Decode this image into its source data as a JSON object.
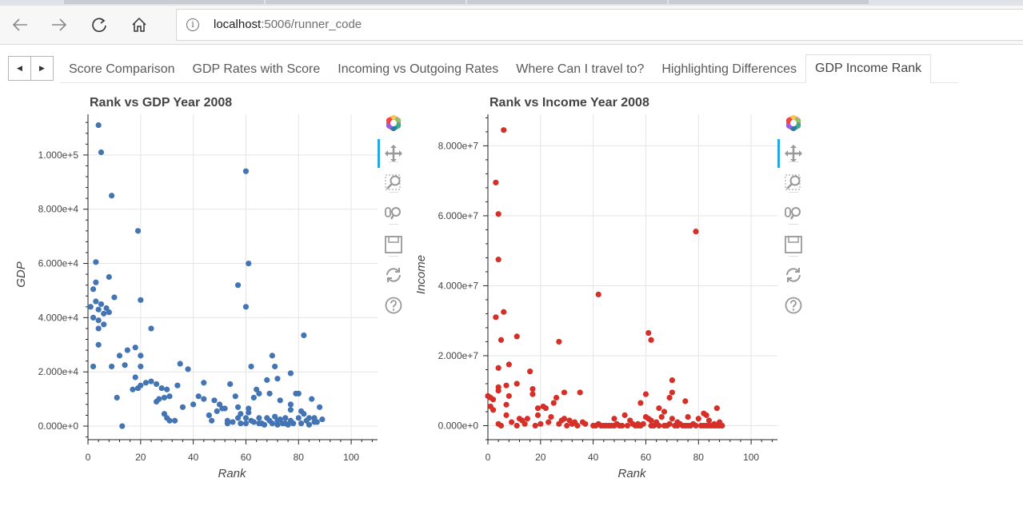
{
  "browser": {
    "url_host": "localhost",
    "url_rest": ":5006/runner_code",
    "info_symbol": "i",
    "nav_icons": [
      "back-arrow-icon",
      "forward-arrow-icon",
      "reload-icon",
      "home-icon"
    ]
  },
  "tabs": {
    "scroll_left": "◀",
    "scroll_right": "▶",
    "items": [
      {
        "label": "Score Comparison"
      },
      {
        "label": "GDP Rates with Score"
      },
      {
        "label": "Incoming vs Outgoing Rates"
      },
      {
        "label": "Where Can I travel to?"
      },
      {
        "label": "Highlighting Differences"
      },
      {
        "label": "GDP Income Rank"
      }
    ],
    "active_index": 5
  },
  "toolbar_icons": [
    "bokeh-logo-icon",
    "pan-icon",
    "box-zoom-icon",
    "wheel-zoom-icon",
    "save-icon",
    "reset-icon",
    "help-icon"
  ],
  "chart_data": [
    {
      "type": "scatter",
      "title": "Rank vs GDP Year 2008",
      "xlabel": "Rank",
      "ylabel": "GDP",
      "xlim": [
        0,
        110
      ],
      "ylim": [
        -5000,
        115000
      ],
      "xticks": [
        0,
        20,
        40,
        60,
        80,
        100
      ],
      "xtick_labels": [
        "0",
        "20",
        "40",
        "60",
        "80",
        "100"
      ],
      "yticks": [
        0,
        20000,
        40000,
        60000,
        80000,
        100000
      ],
      "ytick_labels": [
        "0.000e+0",
        "2.000e+4",
        "4.000e+4",
        "6.000e+4",
        "8.000e+4",
        "1.000e+5"
      ],
      "grid": true,
      "color": "#4374b3",
      "points": [
        [
          4,
          111000
        ],
        [
          5,
          101000
        ],
        [
          9,
          85000
        ],
        [
          19,
          72000
        ],
        [
          60,
          94000
        ],
        [
          61,
          60000
        ],
        [
          3,
          60500
        ],
        [
          8,
          55000
        ],
        [
          57,
          52000
        ],
        [
          3,
          53000
        ],
        [
          2,
          50500
        ],
        [
          10,
          47500
        ],
        [
          20,
          46500
        ],
        [
          1,
          44000
        ],
        [
          60,
          44000
        ],
        [
          3,
          46000
        ],
        [
          4,
          43000
        ],
        [
          5,
          45000
        ],
        [
          7,
          43500
        ],
        [
          6,
          41500
        ],
        [
          8,
          42000
        ],
        [
          2,
          40000
        ],
        [
          4,
          39000
        ],
        [
          6,
          37500
        ],
        [
          24,
          36000
        ],
        [
          82,
          33500
        ],
        [
          4,
          36000
        ],
        [
          4,
          30000
        ],
        [
          15,
          28000
        ],
        [
          18,
          29000
        ],
        [
          70,
          26000
        ],
        [
          12,
          26000
        ],
        [
          20,
          26000
        ],
        [
          9,
          22000
        ],
        [
          2,
          22000
        ],
        [
          20,
          22000
        ],
        [
          14,
          22500
        ],
        [
          35,
          23000
        ],
        [
          38,
          21000
        ],
        [
          71,
          22000
        ],
        [
          77,
          19500
        ],
        [
          18,
          18000
        ],
        [
          68,
          17000
        ],
        [
          72,
          17500
        ],
        [
          22,
          16000
        ],
        [
          24,
          16500
        ],
        [
          26,
          15500
        ],
        [
          20,
          15000
        ],
        [
          64,
          13500
        ],
        [
          19,
          14000
        ],
        [
          17,
          13500
        ],
        [
          44,
          16000
        ],
        [
          54,
          15500
        ],
        [
          56,
          11000
        ],
        [
          28,
          14000
        ],
        [
          30,
          13500
        ],
        [
          34,
          15000
        ],
        [
          40,
          8000
        ],
        [
          42,
          11000
        ],
        [
          44,
          10000
        ],
        [
          48,
          9500
        ],
        [
          50,
          8000
        ],
        [
          52,
          6500
        ],
        [
          29,
          10500
        ],
        [
          31,
          11000
        ],
        [
          26,
          9000
        ],
        [
          27,
          10000
        ],
        [
          11,
          10500
        ],
        [
          36,
          7000
        ],
        [
          46,
          4000
        ],
        [
          47,
          2000
        ],
        [
          53,
          2000
        ],
        [
          55,
          1500
        ],
        [
          57,
          3000
        ],
        [
          58,
          1000
        ],
        [
          60,
          1000
        ],
        [
          61,
          5000
        ],
        [
          62,
          2000
        ],
        [
          63,
          1500
        ],
        [
          65,
          3000
        ],
        [
          66,
          1000
        ],
        [
          67,
          500
        ],
        [
          68,
          3000
        ],
        [
          69,
          2000
        ],
        [
          70,
          1000
        ],
        [
          71,
          3500
        ],
        [
          72,
          500
        ],
        [
          73,
          2500
        ],
        [
          74,
          1000
        ],
        [
          75,
          3000
        ],
        [
          76,
          500
        ],
        [
          77,
          8000
        ],
        [
          78,
          1000
        ],
        [
          79,
          12000
        ],
        [
          80,
          3000
        ],
        [
          81,
          5500
        ],
        [
          82,
          4500
        ],
        [
          83,
          2000
        ],
        [
          84,
          500
        ],
        [
          85,
          10000
        ],
        [
          86,
          3000
        ],
        [
          87,
          1500
        ],
        [
          88,
          7000
        ],
        [
          89,
          2500
        ],
        [
          29,
          4500
        ],
        [
          30,
          3000
        ],
        [
          31,
          2000
        ],
        [
          33,
          2000
        ],
        [
          49,
          5500
        ],
        [
          51,
          6500
        ],
        [
          57,
          7000
        ],
        [
          61,
          6500
        ],
        [
          63,
          10500
        ],
        [
          65,
          12000
        ],
        [
          69,
          12000
        ],
        [
          73,
          9500
        ],
        [
          77,
          6000
        ],
        [
          80,
          12000
        ],
        [
          13,
          0
        ],
        [
          58,
          4500
        ],
        [
          84,
          3000
        ],
        [
          62,
          22000
        ],
        [
          53,
          1000
        ],
        [
          60,
          3000
        ],
        [
          65,
          1000
        ],
        [
          72,
          2000
        ],
        [
          75,
          1000
        ],
        [
          77,
          2000
        ],
        [
          81,
          1000
        ],
        [
          86,
          1500
        ]
      ]
    },
    {
      "type": "scatter",
      "title": "Rank vs Income Year 2008",
      "xlabel": "Rank",
      "ylabel": "Income",
      "xlim": [
        0,
        110
      ],
      "ylim": [
        -4000000,
        89000000
      ],
      "xticks": [
        0,
        20,
        40,
        60,
        80,
        100
      ],
      "xtick_labels": [
        "0",
        "20",
        "40",
        "60",
        "80",
        "100"
      ],
      "yticks": [
        0,
        20000000,
        40000000,
        60000000,
        80000000
      ],
      "ytick_labels": [
        "0.000e+0",
        "2.000e+7",
        "4.000e+7",
        "6.000e+7",
        "8.000e+7"
      ],
      "grid": true,
      "color": "#d52f28",
      "points": [
        [
          6,
          84500000
        ],
        [
          3,
          69500000
        ],
        [
          4,
          60500000
        ],
        [
          79,
          55500000
        ],
        [
          4,
          47500000
        ],
        [
          42,
          37500000
        ],
        [
          6,
          32500000
        ],
        [
          3,
          31000000
        ],
        [
          61,
          26500000
        ],
        [
          11,
          25500000
        ],
        [
          62,
          24500000
        ],
        [
          5,
          24500000
        ],
        [
          27,
          24000000
        ],
        [
          8,
          17500000
        ],
        [
          4,
          16500000
        ],
        [
          16,
          15500000
        ],
        [
          70,
          13000000
        ],
        [
          4,
          11000000
        ],
        [
          7,
          11500000
        ],
        [
          4,
          10000000
        ],
        [
          11,
          12000000
        ],
        [
          17,
          10500000
        ],
        [
          29,
          9500000
        ],
        [
          35,
          9500000
        ],
        [
          70,
          9500000
        ],
        [
          0,
          8500000
        ],
        [
          1,
          8000000
        ],
        [
          2,
          7500000
        ],
        [
          8,
          8500000
        ],
        [
          17,
          9000000
        ],
        [
          26,
          8000000
        ],
        [
          60,
          9000000
        ],
        [
          75,
          7000000
        ],
        [
          25,
          6500000
        ],
        [
          58,
          6500000
        ],
        [
          69,
          8000000
        ],
        [
          7,
          6000000
        ],
        [
          19,
          5000000
        ],
        [
          22,
          5000000
        ],
        [
          65,
          5000000
        ],
        [
          87,
          5000000
        ],
        [
          1,
          5500000
        ],
        [
          2,
          4500000
        ],
        [
          21,
          5500000
        ],
        [
          67,
          4000000
        ],
        [
          82,
          3500000
        ],
        [
          7,
          3000000
        ],
        [
          12,
          2000000
        ],
        [
          19,
          3000000
        ],
        [
          24,
          2500000
        ],
        [
          29,
          2000000
        ],
        [
          31,
          1500000
        ],
        [
          33,
          1000000
        ],
        [
          36,
          1000000
        ],
        [
          48,
          2000000
        ],
        [
          52,
          3000000
        ],
        [
          54,
          1500000
        ],
        [
          60,
          2500000
        ],
        [
          61,
          2000000
        ],
        [
          64,
          1000000
        ],
        [
          66,
          2500000
        ],
        [
          70,
          2000000
        ],
        [
          72,
          1000000
        ],
        [
          76,
          2500000
        ],
        [
          78,
          500000
        ],
        [
          80,
          2000000
        ],
        [
          84,
          1500000
        ],
        [
          86,
          500000
        ],
        [
          88,
          1000000
        ],
        [
          4,
          500000
        ],
        [
          5,
          0
        ],
        [
          9,
          1000000
        ],
        [
          11,
          0
        ],
        [
          14,
          500000
        ],
        [
          18,
          0
        ],
        [
          20,
          500000
        ],
        [
          23,
          1000000
        ],
        [
          27,
          500000
        ],
        [
          30,
          0
        ],
        [
          32,
          500000
        ],
        [
          34,
          0
        ],
        [
          37,
          500000
        ],
        [
          40,
          0
        ],
        [
          41,
          0
        ],
        [
          42,
          500000
        ],
        [
          43,
          0
        ],
        [
          44,
          0
        ],
        [
          45,
          0
        ],
        [
          46,
          0
        ],
        [
          47,
          0
        ],
        [
          48,
          0
        ],
        [
          49,
          500000
        ],
        [
          50,
          0
        ],
        [
          51,
          0
        ],
        [
          53,
          0
        ],
        [
          55,
          500000
        ],
        [
          56,
          0
        ],
        [
          57,
          0
        ],
        [
          58,
          0
        ],
        [
          59,
          500000
        ],
        [
          62,
          0
        ],
        [
          63,
          0
        ],
        [
          65,
          0
        ],
        [
          67,
          0
        ],
        [
          68,
          0
        ],
        [
          69,
          500000
        ],
        [
          71,
          0
        ],
        [
          72,
          0
        ],
        [
          73,
          500000
        ],
        [
          74,
          0
        ],
        [
          75,
          0
        ],
        [
          76,
          0
        ],
        [
          77,
          0
        ],
        [
          79,
          0
        ],
        [
          81,
          0
        ],
        [
          82,
          0
        ],
        [
          83,
          0
        ],
        [
          84,
          0
        ],
        [
          85,
          0
        ],
        [
          86,
          0
        ],
        [
          87,
          0
        ],
        [
          88,
          0
        ],
        [
          89,
          0
        ],
        [
          62,
          1500000
        ],
        [
          57,
          500000
        ],
        [
          83,
          3000000
        ],
        [
          28,
          1500000
        ],
        [
          15,
          2000000
        ],
        [
          13,
          1500000
        ]
      ]
    }
  ]
}
